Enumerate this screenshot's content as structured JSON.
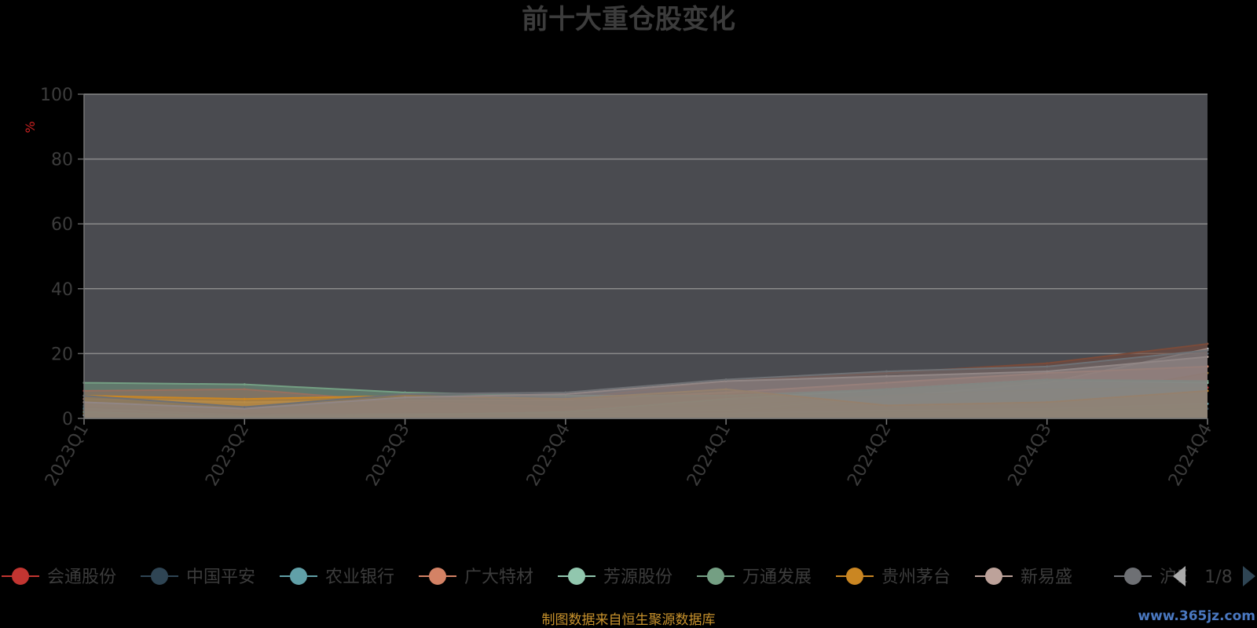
{
  "chart_data": {
    "type": "area",
    "title": "前十大重仓股变化",
    "ylabel": "%",
    "ylim": [
      0,
      100
    ],
    "yticks": [
      0,
      20,
      40,
      60,
      80,
      100
    ],
    "grid": true,
    "legend_position": "bottom",
    "categories": [
      "2023Q1",
      "2023Q2",
      "2023Q3",
      "2023Q4",
      "2024Q1",
      "2024Q2",
      "2024Q3",
      "2024Q4"
    ],
    "series": [
      {
        "name": "会通股份",
        "color": "#c23531",
        "values": [
          8.5,
          9.0,
          5.0,
          3.5,
          4.0,
          7.0,
          9.0,
          9.5
        ]
      },
      {
        "name": "中国平安",
        "color": "#2f4554",
        "values": [
          3.5,
          1.5,
          1.0,
          1.0,
          1.0,
          2.0,
          2.5,
          3.0
        ]
      },
      {
        "name": "农业银行",
        "color": "#61a0a8",
        "values": [
          3.0,
          1.0,
          1.5,
          1.5,
          1.5,
          2.5,
          3.0,
          4.5
        ]
      },
      {
        "name": "广大特材",
        "color": "#d48265",
        "values": [
          6.0,
          5.0,
          5.5,
          5.5,
          8.0,
          11.0,
          14.0,
          16.0
        ]
      },
      {
        "name": "芳源股份",
        "color": "#91c7ae",
        "values": [
          2.0,
          0.5,
          1.0,
          2.0,
          6.0,
          9.0,
          12.0,
          11.0
        ]
      },
      {
        "name": "万通发展",
        "color": "#749f83",
        "values": [
          11.0,
          10.5,
          8.0,
          7.0,
          7.0,
          9.0,
          12.0,
          11.5
        ]
      },
      {
        "name": "贵州茅台",
        "color": "#ca8622",
        "values": [
          7.0,
          6.0,
          7.0,
          6.0,
          9.0,
          4.0,
          5.0,
          8.5
        ]
      },
      {
        "name": "新易盛",
        "color": "#bda29a",
        "values": [
          5.0,
          3.0,
          6.5,
          7.5,
          11.5,
          13.0,
          14.5,
          19.0
        ]
      },
      {
        "name": "沪电股份",
        "color": "#6e7074",
        "values": [
          7.0,
          3.5,
          7.5,
          8.0,
          12.0,
          14.5,
          16.0,
          21.0
        ]
      }
    ],
    "extra_series_colors": [
      "#546570",
      "#c4ccd3",
      "#8c6d2c",
      "#7a4b3a"
    ],
    "extra_series_values": [
      [
        4.0,
        2.5,
        4.0,
        4.5,
        3.0,
        3.0,
        13.0,
        20.0
      ],
      [
        1.0,
        0.5,
        2.5,
        2.0,
        2.5,
        6.5,
        11.0,
        21.5
      ],
      [
        1.5,
        1.0,
        1.5,
        1.5,
        2.0,
        5.0,
        5.5,
        14.0
      ],
      [
        2.5,
        2.0,
        5.0,
        6.0,
        11.5,
        14.0,
        17.0,
        23.0
      ]
    ]
  },
  "legend": {
    "visible_labels": [
      "会通股份",
      "中国平安",
      "农业银行",
      "广大特材",
      "芳源股份",
      "万通发展",
      "贵州茅台",
      "新易盛",
      "沪E"
    ],
    "page_label": "1/8"
  },
  "source_note": "制图数据来自恒生聚源数据库",
  "watermark": "www.365jz.com"
}
